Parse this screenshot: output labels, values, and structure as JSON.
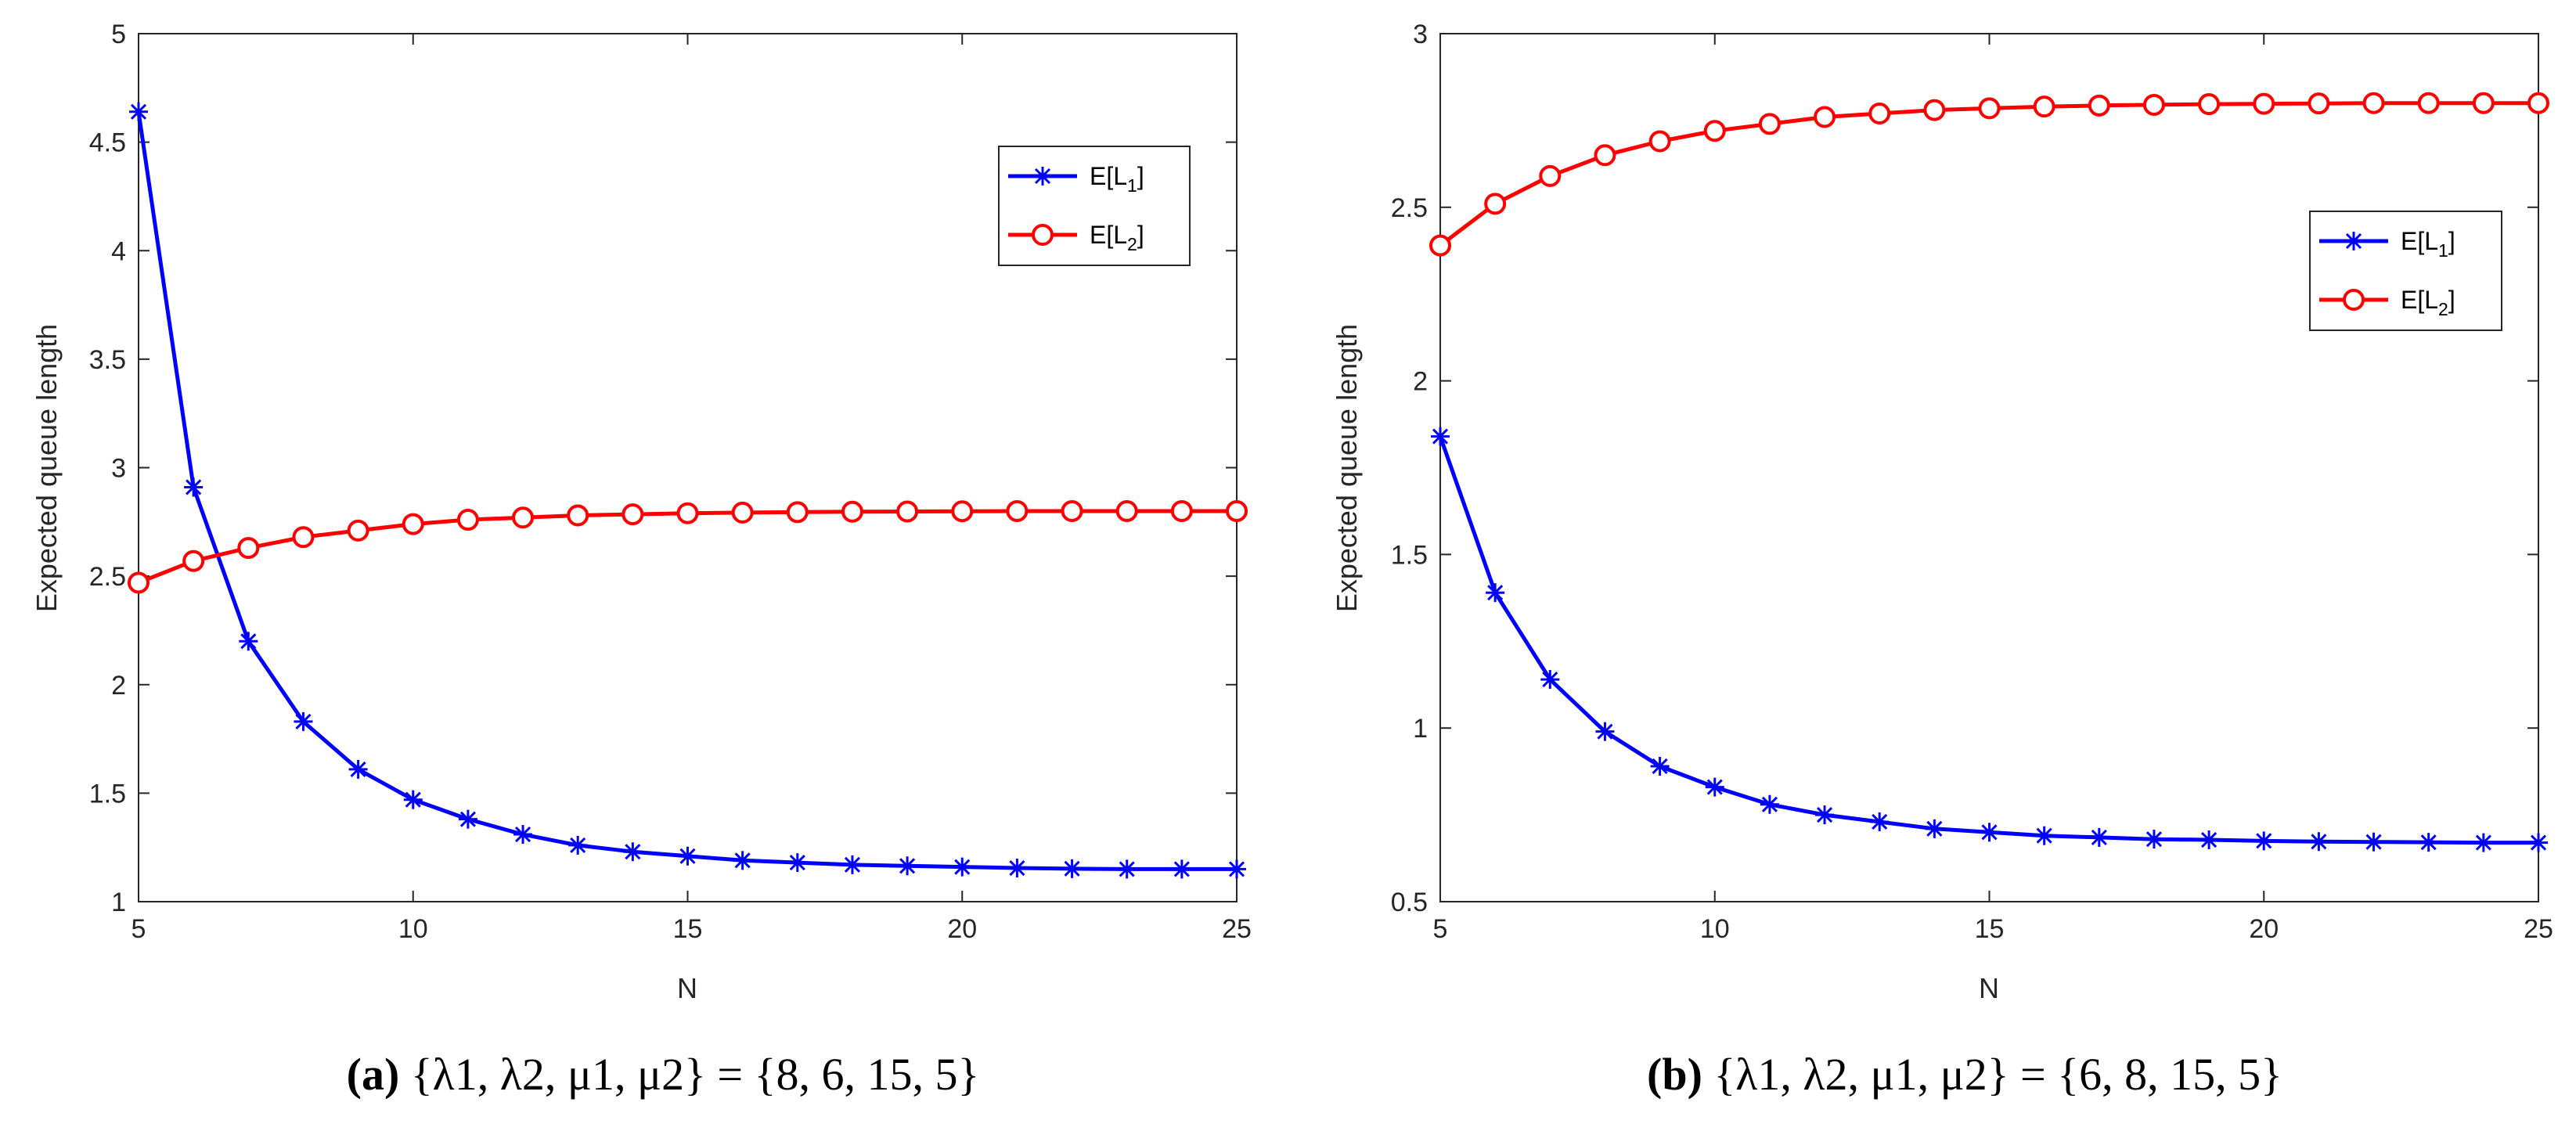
{
  "colors": {
    "l1": "#0000ff",
    "l2": "#ff0000",
    "axis": "#262626"
  },
  "chart_data": [
    {
      "type": "line",
      "panel": "a",
      "xlabel": "N",
      "ylabel": "Expected queue length",
      "xlim": [
        5,
        25
      ],
      "ylim": [
        1,
        5
      ],
      "xticks": [
        "5",
        "10",
        "15",
        "20",
        "25"
      ],
      "yticks": [
        "1",
        "1.5",
        "2",
        "2.5",
        "3",
        "3.5",
        "4",
        "4.5",
        "5"
      ],
      "legend_placement": "top-right",
      "x": [
        5,
        6,
        7,
        8,
        9,
        10,
        11,
        12,
        13,
        14,
        15,
        16,
        17,
        18,
        19,
        20,
        21,
        22,
        23,
        24,
        25
      ],
      "series": [
        {
          "name": "E[L1]",
          "label_main": "E[L",
          "label_sub": "1",
          "label_end": "]",
          "marker": "star",
          "values": [
            4.64,
            2.91,
            2.2,
            1.83,
            1.61,
            1.47,
            1.38,
            1.31,
            1.26,
            1.23,
            1.21,
            1.19,
            1.18,
            1.17,
            1.165,
            1.16,
            1.155,
            1.152,
            1.15,
            1.15,
            1.15
          ]
        },
        {
          "name": "E[L2]",
          "label_main": "E[L",
          "label_sub": "2",
          "label_end": "]",
          "marker": "circle",
          "values": [
            2.47,
            2.57,
            2.63,
            2.68,
            2.71,
            2.74,
            2.76,
            2.77,
            2.78,
            2.785,
            2.79,
            2.793,
            2.795,
            2.797,
            2.798,
            2.799,
            2.8,
            2.8,
            2.8,
            2.8,
            2.8
          ]
        }
      ],
      "caption": {
        "label": "(a)",
        "text": "{λ1, λ2, μ1, μ2} = {8, 6, 15, 5}"
      }
    },
    {
      "type": "line",
      "panel": "b",
      "xlabel": "N",
      "ylabel": "Expected queue length",
      "xlim": [
        5,
        25
      ],
      "ylim": [
        0.5,
        3
      ],
      "xticks": [
        "5",
        "10",
        "15",
        "20",
        "25"
      ],
      "yticks": [
        "0.5",
        "1",
        "1.5",
        "2",
        "2.5",
        "3"
      ],
      "legend_placement": "right",
      "x": [
        5,
        6,
        7,
        8,
        9,
        10,
        11,
        12,
        13,
        14,
        15,
        16,
        17,
        18,
        19,
        20,
        21,
        22,
        23,
        24,
        25
      ],
      "series": [
        {
          "name": "E[L1]",
          "label_main": "E[L",
          "label_sub": "1",
          "label_end": "]",
          "marker": "star",
          "values": [
            1.84,
            1.39,
            1.14,
            0.99,
            0.89,
            0.83,
            0.78,
            0.75,
            0.73,
            0.71,
            0.7,
            0.69,
            0.685,
            0.68,
            0.678,
            0.675,
            0.673,
            0.672,
            0.671,
            0.67,
            0.67
          ]
        },
        {
          "name": "E[L2]",
          "label_main": "E[L",
          "label_sub": "2",
          "label_end": "]",
          "marker": "circle",
          "values": [
            2.39,
            2.51,
            2.59,
            2.65,
            2.69,
            2.72,
            2.74,
            2.76,
            2.77,
            2.78,
            2.785,
            2.79,
            2.793,
            2.795,
            2.797,
            2.798,
            2.799,
            2.8,
            2.8,
            2.8,
            2.8
          ]
        }
      ],
      "caption": {
        "label": "(b)",
        "text": "{λ1, λ2, μ1, μ2} = {6, 8, 15, 5}"
      }
    }
  ]
}
